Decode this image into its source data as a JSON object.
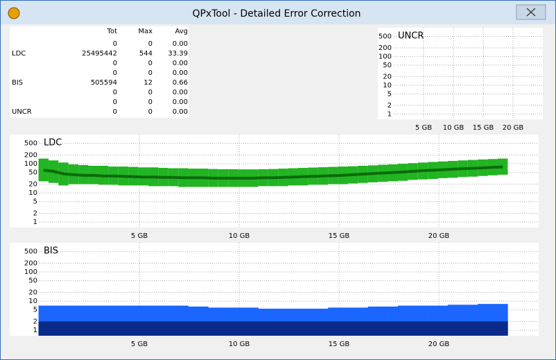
{
  "window": {
    "title": "QPxTool - Detailed Error Correction"
  },
  "table": {
    "header": [
      "Tot",
      "Max",
      "Avg"
    ],
    "rows": [
      {
        "cells": [
          "0",
          "0",
          "0.00"
        ]
      },
      {
        "label": "LDC",
        "cells": [
          "25495442",
          "544",
          "33.39"
        ]
      },
      {
        "cells": [
          "0",
          "0",
          "0.00"
        ]
      },
      {
        "cells": [
          "0",
          "0",
          "0.00"
        ]
      },
      {
        "label": "BIS",
        "cells": [
          "505594",
          "12",
          "0.66"
        ]
      },
      {
        "cells": [
          "0",
          "0",
          "0.00"
        ]
      },
      {
        "cells": [
          "0",
          "0",
          "0.00"
        ]
      },
      {
        "label": "UNCR",
        "cells": [
          "0",
          "0",
          "0.00"
        ]
      }
    ]
  },
  "chart_data": [
    {
      "type": "line",
      "title": "UNCR",
      "log_scale": true,
      "grid": true,
      "xlim": [
        0,
        25
      ],
      "xticks": [
        {
          "value": 5,
          "label": "5 GB"
        },
        {
          "value": 10,
          "label": "10 GB"
        },
        {
          "value": 15,
          "label": "15 GB"
        },
        {
          "value": 20,
          "label": "20 GB"
        }
      ],
      "ylim": [
        0.65,
        1000
      ],
      "yticks": [
        1,
        2,
        5,
        10,
        20,
        50,
        100,
        200,
        500
      ]
    },
    {
      "type": "band",
      "title": "LDC",
      "log_scale": true,
      "grid": true,
      "xlim": [
        0,
        25
      ],
      "xticks": [
        {
          "value": 5,
          "label": "5 GB"
        },
        {
          "value": 10,
          "label": "10 GB"
        },
        {
          "value": 15,
          "label": "15 GB"
        },
        {
          "value": 20,
          "label": "20 GB"
        }
      ],
      "ylim": [
        0.65,
        1000
      ],
      "yticks": [
        1,
        2,
        5,
        10,
        20,
        50,
        100,
        200,
        500
      ],
      "x": [
        0.2,
        0.7,
        1.2,
        1.7,
        2.2,
        2.7,
        3.2,
        3.7,
        4.2,
        4.7,
        5.2,
        5.7,
        6.2,
        6.7,
        7.2,
        7.7,
        8.2,
        8.7,
        9.2,
        9.7,
        10.2,
        10.7,
        11.2,
        11.7,
        12.2,
        12.7,
        13.2,
        13.7,
        14.2,
        14.7,
        15.2,
        15.7,
        16.2,
        16.7,
        17.2,
        17.7,
        18.2,
        18.7,
        19.2,
        19.7,
        20.2,
        20.7,
        21.2,
        21.7,
        22.2,
        22.7,
        23.2
      ],
      "series": [
        {
          "color": "#22b422",
          "values": [
            150,
            130,
            110,
            95,
            90,
            85,
            85,
            80,
            80,
            78,
            75,
            75,
            72,
            70,
            70,
            68,
            68,
            66,
            65,
            65,
            64,
            64,
            65,
            66,
            68,
            70,
            72,
            74,
            76,
            78,
            80,
            82,
            85,
            88,
            92,
            95,
            100,
            105,
            110,
            115,
            120,
            125,
            130,
            135,
            140,
            145,
            150
          ]
        },
        {
          "color": "#22b422",
          "values": [
            25,
            22,
            18,
            20,
            20,
            20,
            19,
            19,
            18,
            18,
            18,
            17,
            17,
            17,
            16,
            16,
            16,
            16,
            16,
            16,
            16,
            16,
            17,
            17,
            17,
            18,
            18,
            19,
            19,
            20,
            20,
            21,
            22,
            23,
            24,
            25,
            26,
            28,
            29,
            30,
            32,
            33,
            35,
            36,
            38,
            40,
            42
          ]
        },
        {
          "color": "#0b6b0b",
          "values": [
            60,
            55,
            45,
            42,
            40,
            40,
            38,
            38,
            37,
            36,
            35,
            35,
            34,
            34,
            33,
            33,
            33,
            32,
            32,
            32,
            32,
            32,
            33,
            33,
            34,
            35,
            36,
            37,
            38,
            39,
            40,
            42,
            44,
            46,
            48,
            50,
            52,
            55,
            58,
            60,
            62,
            65,
            68,
            70,
            72,
            75,
            78
          ]
        }
      ]
    },
    {
      "type": "columns",
      "title": "BIS",
      "log_scale": true,
      "grid": true,
      "xlim": [
        0,
        25
      ],
      "xticks": [
        {
          "value": 5,
          "label": "5 GB"
        },
        {
          "value": 10,
          "label": "10 GB"
        },
        {
          "value": 15,
          "label": "15 GB"
        },
        {
          "value": 20,
          "label": "20 GB"
        }
      ],
      "ylim": [
        0.65,
        1000
      ],
      "yticks": [
        1,
        2,
        5,
        10,
        20,
        50,
        100,
        200,
        500
      ],
      "x": [
        0.2,
        0.7,
        1.2,
        1.7,
        2.2,
        2.7,
        3.2,
        3.7,
        4.2,
        4.7,
        5.2,
        5.7,
        6.2,
        6.7,
        7.2,
        7.7,
        8.2,
        8.7,
        9.2,
        9.7,
        10.2,
        10.7,
        11.2,
        11.7,
        12.2,
        12.7,
        13.2,
        13.7,
        14.2,
        14.7,
        15.2,
        15.7,
        16.2,
        16.7,
        17.2,
        17.7,
        18.2,
        18.7,
        19.2,
        19.7,
        20.2,
        20.7,
        21.2,
        21.7,
        22.2,
        22.7,
        23.2
      ],
      "series": [
        {
          "color": "#1a66ff",
          "values": [
            7,
            7,
            7,
            7,
            7,
            7,
            7,
            7,
            7,
            7,
            7,
            7,
            7,
            7,
            7,
            6.5,
            6.5,
            6,
            6,
            6,
            6,
            6,
            5.5,
            5.5,
            5.5,
            5.5,
            5.5,
            5.5,
            5.5,
            6,
            6,
            6,
            6,
            6.5,
            6.5,
            6.5,
            7,
            7,
            7,
            7,
            7,
            7.5,
            7.5,
            7.5,
            8,
            8,
            8
          ]
        },
        {
          "color": "#0a2a8a",
          "values": [
            2,
            2,
            2,
            2,
            2,
            2,
            2,
            2,
            2,
            2,
            2,
            2,
            2,
            2,
            2,
            2,
            2,
            2,
            2,
            2,
            2,
            2,
            2,
            2,
            2,
            2,
            2,
            2,
            2,
            2,
            2,
            2,
            2,
            2,
            2,
            2,
            2,
            2,
            2,
            2,
            2,
            2,
            2,
            2,
            2,
            2,
            2
          ]
        }
      ]
    }
  ]
}
